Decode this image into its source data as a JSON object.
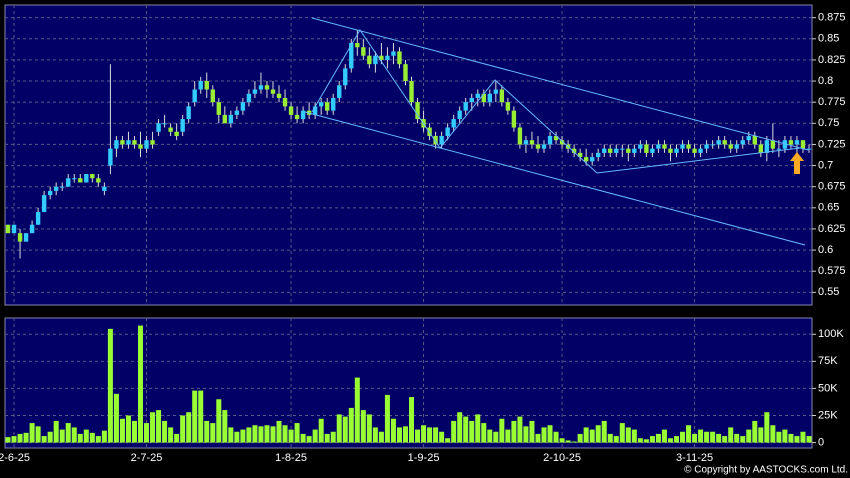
{
  "chart_data": [
    {
      "type": "candlestick",
      "categories": [
        null,
        "2-6-25",
        null,
        null,
        null,
        null,
        null,
        null,
        null,
        null,
        null,
        null,
        null,
        null,
        null,
        null,
        null,
        null,
        null,
        null,
        null,
        null,
        null,
        "2-7-25",
        null,
        null,
        null,
        null,
        null,
        null,
        null,
        null,
        null,
        null,
        null,
        null,
        null,
        null,
        null,
        null,
        null,
        null,
        null,
        null,
        null,
        null,
        null,
        "1-8-25",
        null,
        null,
        null,
        null,
        null,
        null,
        null,
        null,
        null,
        null,
        null,
        null,
        null,
        null,
        null,
        null,
        null,
        null,
        null,
        null,
        null,
        "1-9-25",
        null,
        null,
        null,
        null,
        null,
        null,
        null,
        null,
        null,
        null,
        null,
        null,
        null,
        null,
        null,
        null,
        null,
        null,
        null,
        null,
        null,
        null,
        "2-10-25",
        null,
        null,
        null,
        null,
        null,
        null,
        null,
        null,
        null,
        null,
        null,
        null,
        null,
        null,
        null,
        null,
        null,
        null,
        null,
        null,
        null,
        "3-11-25",
        null,
        null,
        null,
        null,
        null,
        null,
        null,
        null,
        null,
        null,
        null,
        null,
        null,
        null,
        null,
        null,
        null,
        null,
        null
      ],
      "ohlc": [
        [
          0.63,
          0.63,
          0.62,
          0.62
        ],
        [
          0.62,
          0.63,
          0.62,
          0.63
        ],
        [
          0.62,
          0.625,
          0.59,
          0.61
        ],
        [
          0.61,
          0.62,
          0.61,
          0.62
        ],
        [
          0.62,
          0.635,
          0.62,
          0.63
        ],
        [
          0.63,
          0.65,
          0.63,
          0.645
        ],
        [
          0.645,
          0.67,
          0.645,
          0.665
        ],
        [
          0.665,
          0.675,
          0.66,
          0.67
        ],
        [
          0.67,
          0.68,
          0.665,
          0.675
        ],
        [
          0.675,
          0.68,
          0.67,
          0.675
        ],
        [
          0.675,
          0.69,
          0.675,
          0.685
        ],
        [
          0.685,
          0.69,
          0.68,
          0.685
        ],
        [
          0.685,
          0.69,
          0.68,
          0.68
        ],
        [
          0.68,
          0.69,
          0.68,
          0.69
        ],
        [
          0.69,
          0.69,
          0.68,
          0.685
        ],
        [
          0.685,
          0.69,
          0.675,
          0.68
        ],
        [
          0.67,
          0.68,
          0.665,
          0.675
        ],
        [
          0.7,
          0.82,
          0.69,
          0.72
        ],
        [
          0.72,
          0.735,
          0.71,
          0.73
        ],
        [
          0.73,
          0.735,
          0.72,
          0.725
        ],
        [
          0.725,
          0.74,
          0.72,
          0.73
        ],
        [
          0.73,
          0.735,
          0.72,
          0.725
        ],
        [
          0.725,
          0.74,
          0.71,
          0.72
        ],
        [
          0.72,
          0.735,
          0.715,
          0.73
        ],
        [
          0.73,
          0.74,
          0.72,
          0.725
        ],
        [
          0.74,
          0.755,
          0.735,
          0.75
        ],
        [
          0.75,
          0.76,
          0.745,
          0.75
        ],
        [
          0.745,
          0.75,
          0.735,
          0.74
        ],
        [
          0.74,
          0.75,
          0.73,
          0.735
        ],
        [
          0.74,
          0.76,
          0.735,
          0.755
        ],
        [
          0.755,
          0.775,
          0.75,
          0.77
        ],
        [
          0.775,
          0.8,
          0.77,
          0.79
        ],
        [
          0.79,
          0.805,
          0.785,
          0.8
        ],
        [
          0.8,
          0.81,
          0.78,
          0.79
        ],
        [
          0.79,
          0.795,
          0.77,
          0.775
        ],
        [
          0.775,
          0.78,
          0.75,
          0.76
        ],
        [
          0.76,
          0.77,
          0.75,
          0.75
        ],
        [
          0.75,
          0.765,
          0.745,
          0.76
        ],
        [
          0.76,
          0.77,
          0.755,
          0.765
        ],
        [
          0.765,
          0.78,
          0.76,
          0.775
        ],
        [
          0.775,
          0.79,
          0.77,
          0.785
        ],
        [
          0.785,
          0.8,
          0.78,
          0.79
        ],
        [
          0.79,
          0.81,
          0.785,
          0.795
        ],
        [
          0.795,
          0.8,
          0.78,
          0.79
        ],
        [
          0.79,
          0.8,
          0.78,
          0.785
        ],
        [
          0.785,
          0.795,
          0.775,
          0.78
        ],
        [
          0.78,
          0.79,
          0.765,
          0.77
        ],
        [
          0.77,
          0.775,
          0.755,
          0.76
        ],
        [
          0.76,
          0.77,
          0.75,
          0.755
        ],
        [
          0.755,
          0.77,
          0.75,
          0.765
        ],
        [
          0.765,
          0.775,
          0.755,
          0.76
        ],
        [
          0.76,
          0.775,
          0.755,
          0.77
        ],
        [
          0.77,
          0.78,
          0.76,
          0.775
        ],
        [
          0.775,
          0.78,
          0.76,
          0.765
        ],
        [
          0.765,
          0.785,
          0.76,
          0.78
        ],
        [
          0.78,
          0.8,
          0.775,
          0.795
        ],
        [
          0.795,
          0.82,
          0.79,
          0.815
        ],
        [
          0.815,
          0.85,
          0.81,
          0.845
        ],
        [
          0.845,
          0.86,
          0.83,
          0.84
        ],
        [
          0.84,
          0.85,
          0.825,
          0.83
        ],
        [
          0.83,
          0.84,
          0.815,
          0.82
        ],
        [
          0.82,
          0.835,
          0.81,
          0.83
        ],
        [
          0.83,
          0.845,
          0.82,
          0.825
        ],
        [
          0.825,
          0.84,
          0.815,
          0.83
        ],
        [
          0.83,
          0.845,
          0.82,
          0.835
        ],
        [
          0.835,
          0.84,
          0.815,
          0.82
        ],
        [
          0.82,
          0.825,
          0.795,
          0.8
        ],
        [
          0.8,
          0.805,
          0.77,
          0.775
        ],
        [
          0.775,
          0.78,
          0.75,
          0.755
        ],
        [
          0.755,
          0.765,
          0.74,
          0.745
        ],
        [
          0.745,
          0.75,
          0.73,
          0.735
        ],
        [
          0.735,
          0.74,
          0.72,
          0.725
        ],
        [
          0.725,
          0.74,
          0.72,
          0.735
        ],
        [
          0.735,
          0.75,
          0.73,
          0.745
        ],
        [
          0.745,
          0.76,
          0.74,
          0.755
        ],
        [
          0.755,
          0.77,
          0.75,
          0.765
        ],
        [
          0.765,
          0.78,
          0.76,
          0.775
        ],
        [
          0.775,
          0.785,
          0.765,
          0.78
        ],
        [
          0.78,
          0.79,
          0.77,
          0.785
        ],
        [
          0.785,
          0.79,
          0.77,
          0.775
        ],
        [
          0.775,
          0.79,
          0.77,
          0.785
        ],
        [
          0.785,
          0.8,
          0.775,
          0.79
        ],
        [
          0.79,
          0.795,
          0.77,
          0.775
        ],
        [
          0.775,
          0.78,
          0.76,
          0.765
        ],
        [
          0.765,
          0.77,
          0.74,
          0.745
        ],
        [
          0.745,
          0.75,
          0.72,
          0.725
        ],
        [
          0.725,
          0.735,
          0.715,
          0.73
        ],
        [
          0.73,
          0.74,
          0.72,
          0.725
        ],
        [
          0.725,
          0.735,
          0.715,
          0.72
        ],
        [
          0.72,
          0.73,
          0.715,
          0.725
        ],
        [
          0.725,
          0.74,
          0.72,
          0.735
        ],
        [
          0.735,
          0.74,
          0.725,
          0.73
        ],
        [
          0.73,
          0.735,
          0.72,
          0.725
        ],
        [
          0.725,
          0.73,
          0.715,
          0.72
        ],
        [
          0.72,
          0.725,
          0.71,
          0.715
        ],
        [
          0.715,
          0.72,
          0.705,
          0.71
        ],
        [
          0.71,
          0.72,
          0.7,
          0.705
        ],
        [
          0.705,
          0.715,
          0.7,
          0.71
        ],
        [
          0.71,
          0.72,
          0.705,
          0.715
        ],
        [
          0.715,
          0.725,
          0.71,
          0.72
        ],
        [
          0.72,
          0.725,
          0.71,
          0.715
        ],
        [
          0.715,
          0.725,
          0.71,
          0.72
        ],
        [
          0.72,
          0.725,
          0.71,
          0.72
        ],
        [
          0.72,
          0.725,
          0.705,
          0.715
        ],
        [
          0.715,
          0.725,
          0.71,
          0.72
        ],
        [
          0.72,
          0.73,
          0.715,
          0.725
        ],
        [
          0.725,
          0.73,
          0.71,
          0.715
        ],
        [
          0.715,
          0.725,
          0.71,
          0.72
        ],
        [
          0.72,
          0.73,
          0.715,
          0.725
        ],
        [
          0.725,
          0.73,
          0.715,
          0.72
        ],
        [
          0.72,
          0.725,
          0.705,
          0.715
        ],
        [
          0.715,
          0.725,
          0.71,
          0.72
        ],
        [
          0.72,
          0.73,
          0.715,
          0.725
        ],
        [
          0.725,
          0.73,
          0.715,
          0.72
        ],
        [
          0.72,
          0.725,
          0.71,
          0.715
        ],
        [
          0.715,
          0.725,
          0.71,
          0.72
        ],
        [
          0.72,
          0.73,
          0.715,
          0.725
        ],
        [
          0.725,
          0.73,
          0.72,
          0.725
        ],
        [
          0.725,
          0.735,
          0.72,
          0.73
        ],
        [
          0.73,
          0.735,
          0.72,
          0.725
        ],
        [
          0.725,
          0.73,
          0.715,
          0.72
        ],
        [
          0.72,
          0.73,
          0.715,
          0.725
        ],
        [
          0.725,
          0.735,
          0.72,
          0.73
        ],
        [
          0.73,
          0.74,
          0.725,
          0.735
        ],
        [
          0.735,
          0.74,
          0.72,
          0.725
        ],
        [
          0.725,
          0.73,
          0.71,
          0.715
        ],
        [
          0.715,
          0.735,
          0.705,
          0.73
        ],
        [
          0.73,
          0.75,
          0.715,
          0.72
        ],
        [
          0.72,
          0.73,
          0.71,
          0.72
        ],
        [
          0.72,
          0.735,
          0.715,
          0.73
        ],
        [
          0.73,
          0.735,
          0.72,
          0.725
        ],
        [
          0.725,
          0.735,
          0.715,
          0.73
        ],
        [
          0.73,
          0.73,
          0.715,
          0.72
        ],
        [
          0.72,
          0.725,
          0.715,
          0.72
        ]
      ],
      "up_color": "#33ccff",
      "down_color": "#99ee33",
      "wick_color": "#dddddd",
      "ylim": [
        0.535,
        0.89
      ],
      "yticks": [
        0.55,
        0.575,
        0.6,
        0.625,
        0.65,
        0.675,
        0.7,
        0.725,
        0.75,
        0.775,
        0.8,
        0.825,
        0.85,
        0.875
      ],
      "grid": true
    },
    {
      "type": "bar",
      "values": [
        5000,
        6000,
        8000,
        9000,
        18000,
        15000,
        6000,
        10000,
        20000,
        12000,
        18000,
        14000,
        8000,
        12000,
        9000,
        6000,
        11000,
        105000,
        45000,
        22000,
        25000,
        20000,
        108000,
        18000,
        28000,
        30000,
        20000,
        14000,
        8000,
        25000,
        28000,
        48000,
        48000,
        20000,
        18000,
        40000,
        30000,
        14000,
        10000,
        12000,
        14000,
        16000,
        15000,
        16000,
        15000,
        20000,
        16000,
        12000,
        18000,
        8000,
        6000,
        12000,
        22000,
        8000,
        10000,
        26000,
        24000,
        32000,
        60000,
        30000,
        26000,
        14000,
        10000,
        44000,
        22000,
        14000,
        15000,
        42000,
        12000,
        16000,
        14000,
        14000,
        10000,
        4000,
        20000,
        28000,
        24000,
        20000,
        26000,
        18000,
        12000,
        10000,
        22000,
        12000,
        20000,
        24000,
        15000,
        20000,
        8000,
        14000,
        16000,
        10000,
        4000,
        2000,
        1000,
        8000,
        14000,
        12000,
        16000,
        20000,
        8000,
        6000,
        18000,
        14000,
        12000,
        4000,
        3000,
        6000,
        8000,
        12000,
        4000,
        6000,
        10000,
        16000,
        8000,
        12000,
        10000,
        10000,
        8000,
        6000,
        14000,
        8000,
        6000,
        12000,
        20000,
        14000,
        28000,
        16000,
        10000,
        12000,
        8000,
        6000,
        10000,
        6000
      ],
      "color": "#99ff33",
      "ylim": [
        -5000,
        115000
      ],
      "yticks": [
        0,
        {
          "value": 25000,
          "label": "25K"
        },
        {
          "value": 50000,
          "label": "50K"
        },
        {
          "value": 75000,
          "label": "75K"
        },
        {
          "value": 100000,
          "label": "100K"
        }
      ],
      "grid": true
    }
  ],
  "copyright": "© Copyright by AASTOCKS.com Ltd."
}
